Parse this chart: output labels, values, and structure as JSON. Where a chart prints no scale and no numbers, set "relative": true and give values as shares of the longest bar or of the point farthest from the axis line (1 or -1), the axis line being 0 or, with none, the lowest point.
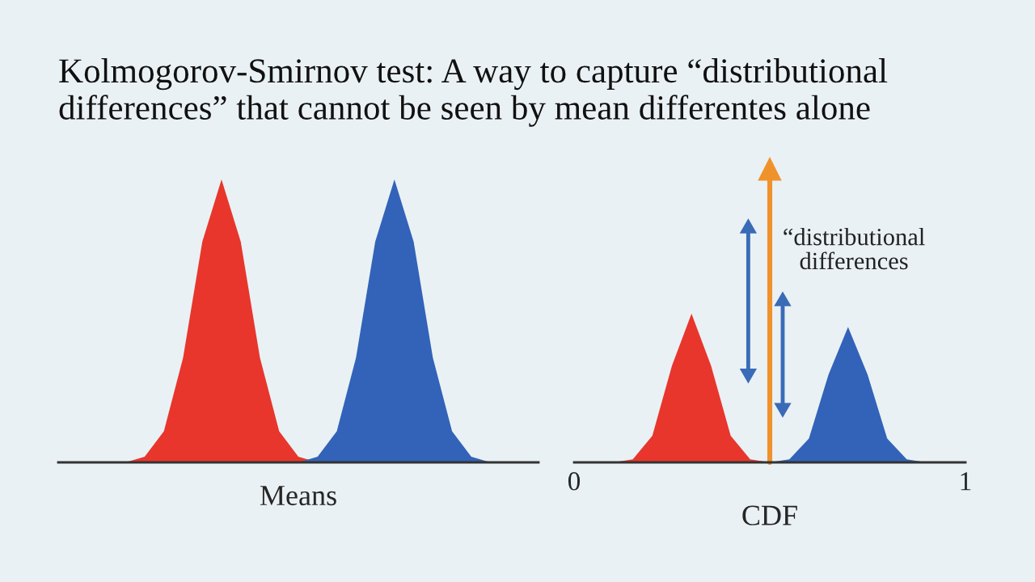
{
  "chart_data": [
    {
      "type": "area",
      "relative": true,
      "tick_labels": false,
      "title": "Kolmogorov-Smirnov test: A way to capture “distributional differences” that cannot be seen by mean differentes alone",
      "xlabel": "Means",
      "categories": [
        null,
        null,
        null,
        null,
        null,
        null,
        null,
        null,
        null,
        null,
        null,
        null,
        null,
        null,
        null,
        null,
        null,
        null,
        null,
        null,
        null,
        null,
        null,
        null,
        null
      ],
      "series": [
        {
          "color": "#e8362c",
          "values": [
            0,
            0,
            0,
            0,
            0.02,
            0.11,
            0.37,
            0.78,
            1,
            0.78,
            0.37,
            0.11,
            0.02,
            0,
            null,
            null,
            null,
            null,
            null,
            null,
            null,
            null,
            null,
            null,
            null
          ]
        },
        {
          "color": "#3263b8",
          "values": [
            null,
            null,
            null,
            null,
            null,
            null,
            null,
            null,
            null,
            null,
            null,
            null,
            0,
            0.02,
            0.11,
            0.37,
            0.78,
            1,
            0.78,
            0.37,
            0.11,
            0.02,
            0,
            0,
            0
          ]
        }
      ]
    },
    {
      "type": "area",
      "relative": true,
      "tick_labels": "x",
      "xlabel": "CDF",
      "xlim": [
        0,
        1
      ],
      "xticks": [
        0,
        1
      ],
      "x": [
        0,
        0.05,
        0.1,
        0.15,
        0.2,
        0.25,
        0.3,
        0.35,
        0.4,
        0.45,
        0.5,
        0.55,
        0.6,
        0.65,
        0.7,
        0.75,
        0.8,
        0.85,
        0.9,
        0.95,
        1
      ],
      "series": [
        {
          "color": "#e8362c",
          "values": [
            0,
            0,
            0,
            0.02,
            0.18,
            0.65,
            1,
            0.65,
            0.18,
            0.02,
            0,
            null,
            null,
            null,
            null,
            null,
            null,
            null,
            null,
            null,
            null
          ]
        },
        {
          "color": "#3263b8",
          "values": [
            null,
            null,
            null,
            null,
            null,
            null,
            null,
            null,
            null,
            null,
            0,
            0.02,
            0.16,
            0.59,
            0.91,
            0.59,
            0.16,
            0.02,
            0,
            0,
            0
          ]
        }
      ],
      "ref_lines": [
        {
          "axis": "x",
          "value": 0.5,
          "color": "#f0922b"
        }
      ],
      "annotations": [
        "“distributional\ndifferences"
      ]
    }
  ]
}
